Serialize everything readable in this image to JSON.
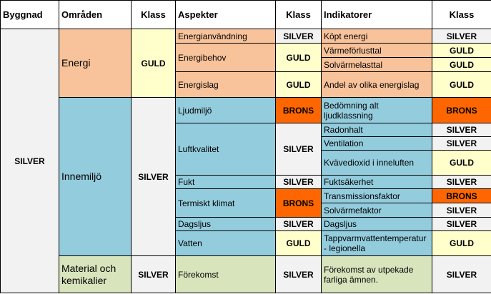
{
  "headers": {
    "building": "Byggnad",
    "areas": "Områden",
    "class1": "Klass",
    "aspects": "Aspekter",
    "class2": "Klass",
    "indicators": "Indikatorer",
    "class3": "Klass"
  },
  "building_class": "SILVER",
  "areas": [
    {
      "name": "Energi",
      "class": "GULD",
      "color": "#f8c29a"
    },
    {
      "name": "Innemiljö",
      "class": "SILVER",
      "color": "#93ccdd"
    },
    {
      "name": "Material och kemikalier",
      "class": "SILVER",
      "color": "#d8e4bc"
    }
  ],
  "aspects": [
    {
      "name": "Energianvändning",
      "class": "SILVER"
    },
    {
      "name": "Energibehov",
      "class": "GULD"
    },
    {
      "name": "Energislag",
      "class": "GULD"
    },
    {
      "name": "Ljudmiljö",
      "class": "BRONS"
    },
    {
      "name": "Luftkvalitet",
      "class": "SILVER"
    },
    {
      "name": "Fukt",
      "class": "SILVER"
    },
    {
      "name": "Termiskt klimat",
      "class": "BRONS"
    },
    {
      "name": "Dagsljus",
      "class": "SILVER"
    },
    {
      "name": "Vatten",
      "class": "GULD"
    },
    {
      "name": "Förekomst",
      "class": "SILVER"
    }
  ],
  "indicators": [
    {
      "name": "Köpt energi",
      "class": "SILVER"
    },
    {
      "name": "Värmeförlusttal",
      "class": "GULD"
    },
    {
      "name": "Solvärmelasttal",
      "class": "GULD"
    },
    {
      "name": "Andel av olika energislag",
      "class": "GULD"
    },
    {
      "name": "Bedömning alt ljudklassning",
      "class": "BRONS"
    },
    {
      "name": "Radonhalt",
      "class": "SILVER"
    },
    {
      "name": "Ventilation",
      "class": "SILVER"
    },
    {
      "name": "Kvävedioxid i inneluften",
      "class": "GULD"
    },
    {
      "name": "Fuktsäkerhet",
      "class": "SILVER"
    },
    {
      "name": "Transmissionsfaktor",
      "class": "BRONS"
    },
    {
      "name": "Solvärmefaktor",
      "class": "SILVER"
    },
    {
      "name": "Dagsljus",
      "class": "SILVER"
    },
    {
      "name": "Tappvarmvattentemperatur - legionella",
      "class": "GULD"
    },
    {
      "name": "Förekomst av utpekade farliga ämnen.",
      "class": "SILVER"
    }
  ],
  "class_colors": {
    "GULD": "#ffffcc",
    "SILVER": "#f2f2f2",
    "BRONS": "#ff6600"
  }
}
